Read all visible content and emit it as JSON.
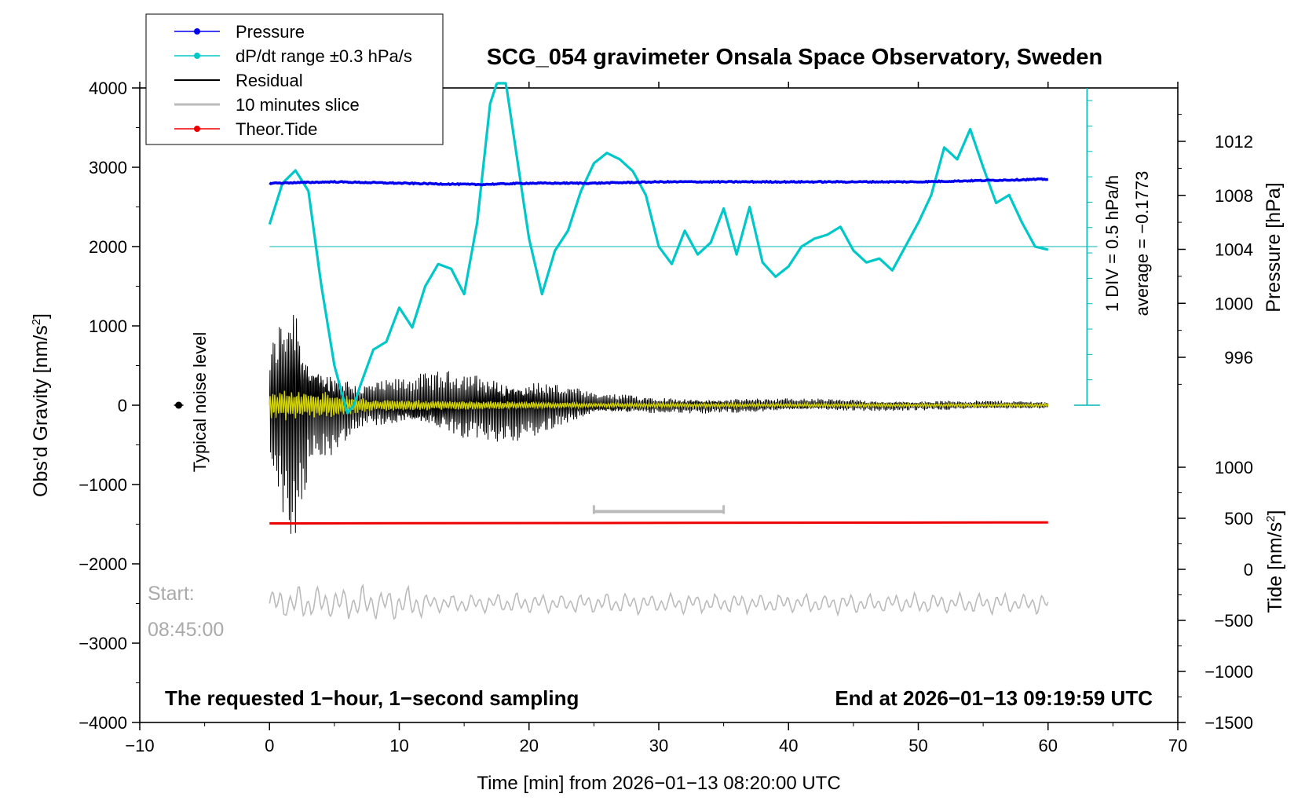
{
  "chart_data": {
    "type": "line",
    "title": "SCG_054 gravimeter Onsala Space Observatory, Sweden",
    "xlabel": "Time [min] from 2026−01−13 08:20:00 UTC",
    "ylabel_left": "Obs'd Gravity [nm/s",
    "ylabel_left_sup": "2",
    "ylabel_left_end": "]",
    "ylabel_right_pressure": "Pressure [hPa]",
    "ylabel_right_tide": "Tide [nm/s",
    "ylabel_right_tide_sup": "2",
    "ylabel_right_tide_end": "]",
    "xlim": [
      -10,
      70
    ],
    "ylim": [
      -4000,
      4000
    ],
    "pressure_range": [
      992.6,
      1015.5
    ],
    "tide_range": [
      -1500,
      1000
    ],
    "x_ticks": [
      "−10",
      "0",
      "10",
      "20",
      "30",
      "40",
      "50",
      "60",
      "70"
    ],
    "x_tick_values": [
      -10,
      0,
      10,
      20,
      30,
      40,
      50,
      60,
      70
    ],
    "y_ticks": [
      "4000",
      "3000",
      "2000",
      "1000",
      "0",
      "−1000",
      "−2000",
      "−3000",
      "−4000"
    ],
    "y_tick_values": [
      4000,
      3000,
      2000,
      1000,
      0,
      -1000,
      -2000,
      -3000,
      -4000
    ],
    "pressure_ticks": [
      "1012",
      "1008",
      "1004",
      "1000",
      "996"
    ],
    "pressure_tick_values": [
      1012,
      1008,
      1004,
      1000,
      996
    ],
    "tide_ticks": [
      "1000",
      "500",
      "0",
      "−500",
      "−1000",
      "−1500"
    ],
    "tide_tick_values": [
      1000,
      500,
      0,
      -500,
      -1000,
      -1500
    ],
    "legend": {
      "position": "top-left",
      "entries": [
        {
          "label": "Pressure",
          "color": "#0000ee",
          "marker": true
        },
        {
          "label": "dP/dt range ±0.3 hPa/s",
          "color": "#00c8c8",
          "marker": true
        },
        {
          "label": "Residual",
          "color": "#000000",
          "marker": false
        },
        {
          "label": "10 minutes slice",
          "color": "#bbbbbb",
          "marker": false
        },
        {
          "label": "Theor.Tide",
          "color": "#ee0000",
          "marker": true
        }
      ]
    },
    "series": [
      {
        "name": "Pressure",
        "color": "#0000ee",
        "axis": "pressure",
        "x": [
          0,
          5,
          10,
          16,
          20,
          25,
          30,
          35,
          40,
          45,
          50,
          55,
          60
        ],
        "values": [
          1008.9,
          1009.0,
          1008.9,
          1008.8,
          1008.9,
          1008.9,
          1009.0,
          1009.0,
          1009.0,
          1009.0,
          1009.0,
          1009.1,
          1009.2
        ]
      },
      {
        "name": "dP/dt",
        "color": "#00c8c8",
        "axis": "gravity",
        "x": [
          0,
          1,
          2,
          3,
          4,
          5,
          6,
          6.5,
          7,
          8,
          9,
          10,
          11,
          12,
          13,
          14,
          15,
          16,
          17,
          18,
          19,
          20,
          21,
          22,
          23,
          24,
          25,
          26,
          27,
          28,
          29,
          30,
          31,
          32,
          33,
          34,
          35,
          36,
          37,
          38,
          39,
          40,
          41,
          42,
          43,
          44,
          45,
          46,
          47,
          48,
          49,
          50,
          51,
          52,
          53,
          54,
          55,
          56,
          57,
          58,
          59,
          60
        ],
        "values": [
          2280,
          2800,
          2960,
          2700,
          1500,
          500,
          -100,
          0,
          250,
          700,
          800,
          1230,
          980,
          1500,
          1780,
          1720,
          1400,
          2300,
          3800,
          4300,
          3200,
          2100,
          1400,
          1950,
          2200,
          2700,
          3050,
          3180,
          3100,
          2950,
          2650,
          2000,
          1780,
          2200,
          1900,
          2050,
          2480,
          1900,
          2500,
          1800,
          1620,
          1750,
          2000,
          2100,
          2150,
          2250,
          1950,
          1800,
          1850,
          1700,
          2000,
          2300,
          2650,
          3250,
          3100,
          3480,
          3000,
          2550,
          2650,
          2300,
          2000,
          1960
        ]
      },
      {
        "name": "Residual",
        "color": "#000000",
        "axis": "gravity",
        "envelope_x": [
          0,
          1,
          2,
          3,
          5,
          7,
          10,
          15,
          20,
          25,
          30,
          40,
          50,
          60
        ],
        "envelope_values": [
          800,
          1500,
          2000,
          900,
          600,
          300,
          350,
          500,
          450,
          150,
          120,
          90,
          70,
          50
        ]
      },
      {
        "name": "Residual (filtered)",
        "color": "#d4d400",
        "axis": "gravity",
        "envelope_x": [
          0,
          2,
          5,
          8,
          15,
          25,
          40,
          60
        ],
        "envelope_values": [
          180,
          200,
          160,
          80,
          60,
          35,
          25,
          20
        ]
      },
      {
        "name": "Theor.Tide",
        "color": "#ee0000",
        "axis": "tide",
        "x": [
          0,
          60
        ],
        "values": [
          450,
          460
        ]
      },
      {
        "name": "10 minutes slice",
        "color": "#bbbbbb",
        "axis": "gravity",
        "x_range": [
          0,
          60
        ],
        "baseline": -2500,
        "amplitude": 150
      }
    ],
    "slice_marker": {
      "x_range": [
        25,
        35
      ],
      "y": -1340,
      "color": "#bbbbbb"
    },
    "noise_point": {
      "x": -7,
      "y": 0
    },
    "dpdt_reference": {
      "y": 2000,
      "div_label": "1 DIV = 0.5 hPa/h",
      "average_label": "average = −0.1773",
      "top": 4000,
      "bottom": 0
    },
    "annotations": {
      "noise": "Typical noise level",
      "start_label": "Start:",
      "start_time": "08:45:00",
      "bottom_left": "The requested 1−hour, 1−second sampling",
      "bottom_right": "End at 2026−01−13 09:19:59 UTC"
    }
  }
}
